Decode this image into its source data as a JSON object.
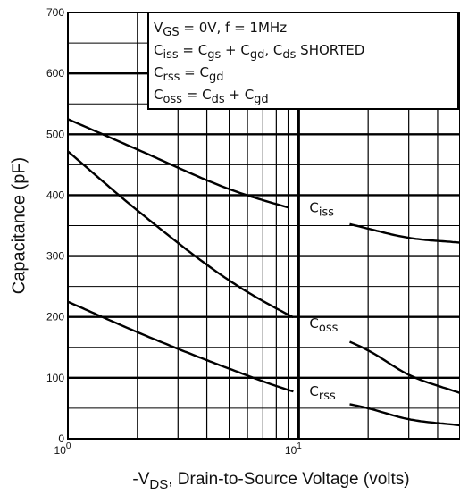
{
  "chart_data": {
    "type": "line",
    "x_scale": "log",
    "xlim": [
      1,
      50
    ],
    "ylim": [
      0,
      700
    ],
    "grid": true,
    "legend_position": "top-right",
    "xlabel": {
      "prefix": "-V",
      "sub": "DS",
      "suffix": ", Drain-to-Source Voltage (volts)"
    },
    "ylabel": "Capacitance (pF)",
    "y_ticks": [
      "0",
      "100",
      "200",
      "300",
      "400",
      "500",
      "600",
      "700"
    ],
    "x_ticks": [
      {
        "base": "10",
        "exp": "0"
      },
      {
        "base": "10",
        "exp": "1"
      }
    ],
    "legend_lines": [
      [
        [
          "V",
          ""
        ],
        [
          "GS",
          "sub"
        ],
        [
          " = 0V,  f = 1MHz",
          ""
        ]
      ],
      [
        [
          "C",
          ""
        ],
        [
          "iss",
          "sub"
        ],
        [
          " = C",
          ""
        ],
        [
          "gs",
          "sub"
        ],
        [
          " + C",
          ""
        ],
        [
          "gd",
          "sub"
        ],
        [
          ",  C",
          ""
        ],
        [
          "ds",
          "sub"
        ],
        [
          " SHORTED",
          ""
        ]
      ],
      [
        [
          "C",
          ""
        ],
        [
          "rss",
          "sub"
        ],
        [
          " = C",
          ""
        ],
        [
          "gd",
          "sub"
        ]
      ],
      [
        [
          "C",
          ""
        ],
        [
          "oss",
          "sub"
        ],
        [
          " = C",
          ""
        ],
        [
          "ds",
          "sub"
        ],
        [
          " + C",
          ""
        ],
        [
          "gd",
          "sub"
        ]
      ]
    ],
    "series": [
      {
        "label": {
          "base": "C",
          "sub": "iss"
        },
        "x": [
          1,
          2,
          5,
          10,
          20,
          30,
          50
        ],
        "y": [
          525,
          475,
          410,
          375,
          345,
          330,
          322
        ]
      },
      {
        "label": {
          "base": "C",
          "sub": "oss"
        },
        "x": [
          1,
          2,
          5,
          10,
          20,
          30,
          50
        ],
        "y": [
          472,
          375,
          260,
          195,
          145,
          105,
          75
        ]
      },
      {
        "label": {
          "base": "C",
          "sub": "rss"
        },
        "x": [
          1,
          2,
          5,
          10,
          20,
          30,
          50
        ],
        "y": [
          225,
          175,
          115,
          75,
          50,
          32,
          22
        ]
      }
    ]
  }
}
